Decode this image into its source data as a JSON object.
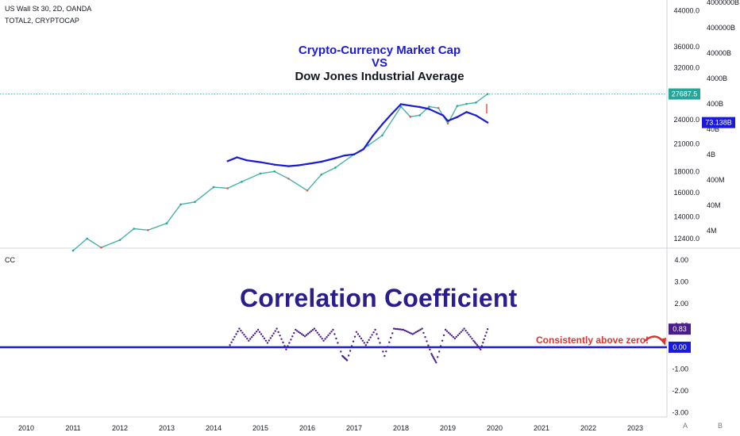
{
  "legend": {
    "main_symbol": "US Wall St 30, 2D, OANDA",
    "overlay_symbol": "TOTAL2, CRYPTOCAP",
    "indicator": "CC"
  },
  "annotations": {
    "title_line1": "Crypto-Currency Market Cap",
    "title_line2": "VS",
    "title_line3": "Dow Jones Industrial Average",
    "indicator_title": "Correlation Coefficient",
    "note": "Consistently above zero!"
  },
  "colors": {
    "dow": "#26a69a",
    "dow_down": "#ef5350",
    "crypto": "#1a1adb",
    "cc": "#4a1d8c",
    "zero": "#1a1adb",
    "title_blue": "#1a1adb",
    "title_black": "#131722",
    "note_red": "#e0322f",
    "price_label": "#26a69a"
  },
  "buttons": {
    "a": "A",
    "b": "B"
  },
  "chart_data": [
    {
      "type": "line",
      "title": "Crypto-Currency Market Cap VS Dow Jones Industrial Average",
      "x_ticks": [
        "2010",
        "2011",
        "2012",
        "2013",
        "2014",
        "2015",
        "2016",
        "2017",
        "2018",
        "2019",
        "2020",
        "2021",
        "2022",
        "2023"
      ],
      "right_axis": {
        "scale": "log",
        "ticks": [
          "44000.0",
          "36000.0",
          "32000.0",
          "24000.0",
          "21000.0",
          "18000.0",
          "16000.0",
          "14000.0",
          "12400.0"
        ]
      },
      "left_axis": {
        "scale": "log",
        "ticks": [
          "4000000B",
          "400000B",
          "40000B",
          "4000B",
          "400B",
          "40B",
          "4B",
          "400M",
          "40M",
          "4M"
        ]
      },
      "last_values": {
        "dow": "27687.5",
        "crypto": "73.138B"
      },
      "series": [
        {
          "name": "US Wall St 30",
          "x": [
            2011.0,
            2011.3,
            2011.6,
            2012.0,
            2012.3,
            2012.6,
            2013.0,
            2013.3,
            2013.6,
            2014.0,
            2014.3,
            2014.6,
            2015.0,
            2015.3,
            2015.6,
            2016.0,
            2016.3,
            2016.6,
            2017.0,
            2017.3,
            2017.6,
            2018.0,
            2018.2,
            2018.4,
            2018.6,
            2018.8,
            2019.0,
            2019.2,
            2019.4,
            2019.6,
            2019.85
          ],
          "values": [
            11600,
            12400,
            11800,
            12300,
            13100,
            13000,
            13500,
            15000,
            15200,
            16500,
            16400,
            17000,
            17800,
            18000,
            17300,
            16200,
            17700,
            18400,
            19800,
            20800,
            22000,
            25800,
            24400,
            24600,
            25800,
            25600,
            23500,
            25900,
            26200,
            26400,
            27687.5
          ]
        },
        {
          "name": "TOTAL2",
          "x": [
            2014.3,
            2014.5,
            2014.7,
            2015.0,
            2015.3,
            2015.6,
            2015.8,
            2016.0,
            2016.3,
            2016.6,
            2016.8,
            2017.0,
            2017.2,
            2017.4,
            2017.6,
            2017.8,
            2018.0,
            2018.2,
            2018.4,
            2018.6,
            2018.9,
            2019.0,
            2019.2,
            2019.4,
            2019.6,
            2019.85
          ],
          "values": [
            2.2,
            3.1,
            2.4,
            2.0,
            1.6,
            1.4,
            1.5,
            1.7,
            2.1,
            2.9,
            3.7,
            4.1,
            6.5,
            22,
            62,
            160,
            390,
            340,
            300,
            250,
            140,
            85,
            120,
            190,
            140,
            73.138
          ]
        }
      ]
    },
    {
      "type": "scatter",
      "title": "Correlation Coefficient",
      "y_ticks": [
        "4.00",
        "3.00",
        "2.00",
        "1.00",
        "0.00",
        "-1.00",
        "-2.00",
        "-3.00"
      ],
      "ylim": [
        -3,
        4
      ],
      "last_value": "0.83",
      "zero_label": "0.00",
      "series": [
        {
          "name": "CC",
          "x": [
            2014.35,
            2014.55,
            2014.75,
            2014.95,
            2015.15,
            2015.35,
            2015.55,
            2015.75,
            2015.95,
            2016.15,
            2016.35,
            2016.55,
            2016.75,
            2016.85,
            2017.05,
            2017.25,
            2017.45,
            2017.65,
            2017.85,
            2018.05,
            2018.25,
            2018.45,
            2018.65,
            2018.75,
            2018.95,
            2019.15,
            2019.35,
            2019.55,
            2019.7,
            2019.85
          ],
          "values": [
            0.1,
            0.85,
            0.3,
            0.8,
            0.2,
            0.85,
            -0.1,
            0.8,
            0.5,
            0.85,
            0.3,
            0.8,
            -0.4,
            -0.6,
            0.7,
            0.1,
            0.8,
            -0.4,
            0.85,
            0.8,
            0.6,
            0.85,
            -0.3,
            -0.7,
            0.8,
            0.4,
            0.85,
            0.3,
            -0.1,
            0.83
          ]
        }
      ]
    }
  ]
}
